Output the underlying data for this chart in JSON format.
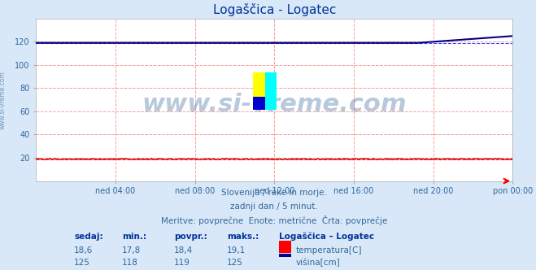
{
  "title": "Logaščica - Logatec",
  "bg_color": "#d8e8f8",
  "plot_bg_color": "#ffffff",
  "grid_color_major": "#ff9999",
  "grid_color_minor": "#ffcccc",
  "x_labels": [
    "ned 04:00",
    "ned 08:00",
    "ned 12:00",
    "ned 16:00",
    "ned 20:00",
    "pon 00:00"
  ],
  "x_ticks_norm": [
    0.16667,
    0.33333,
    0.5,
    0.66667,
    0.83333,
    1.0
  ],
  "ylim": [
    0,
    140
  ],
  "yticks": [
    20,
    40,
    60,
    80,
    100,
    120
  ],
  "temp_color": "#cc0000",
  "temp_avg_color": "#ff4444",
  "height_color": "#000080",
  "height_avg_color": "#4444ff",
  "watermark": "www.si-vreme.com",
  "subtitle1": "Slovenija / reke in morje.",
  "subtitle2": "zadnji dan / 5 minut.",
  "subtitle3": "Meritve: povprečne  Enote: metrične  Črta: povprečje",
  "table_headers": [
    "sedaj:",
    "min.:",
    "povpr.:",
    "maks.:"
  ],
  "legend_title": "Logaščica – Logatec",
  "row1_values": [
    "18,6",
    "17,8",
    "18,4",
    "19,1"
  ],
  "row2_values": [
    "125",
    "118",
    "119",
    "125"
  ],
  "label1": "temperatura[C]",
  "label2": "višina[cm]",
  "temp_sedaj": 18.6,
  "temp_min": 17.8,
  "temp_avg": 18.4,
  "temp_max": 19.1,
  "visina_sedaj": 125,
  "visina_min": 118,
  "visina_avg": 119,
  "visina_max": 125,
  "n_points": 288
}
